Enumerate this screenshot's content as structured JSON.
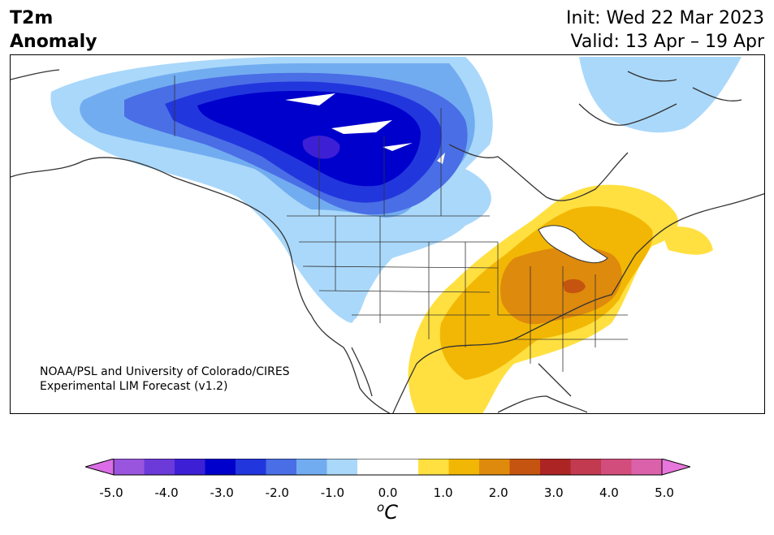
{
  "title": {
    "line1": "T2m",
    "line2": "Anomaly"
  },
  "header": {
    "init": "Init: Wed 22 Mar 2023",
    "valid": "Valid: 13 Apr – 19 Apr"
  },
  "credit": {
    "line1": "NOAA/PSL and University of Colorado/CIRES",
    "line2": "Experimental LIM Forecast (v1.2)"
  },
  "colorbar": {
    "ticks": [
      "-5.0",
      "-4.0",
      "-3.0",
      "-2.0",
      "-1.0",
      "0.0",
      "1.0",
      "2.0",
      "3.0",
      "4.0",
      "5.0"
    ],
    "unit_sup": "o",
    "unit": "C",
    "colors": [
      "#9955dd",
      "#6b3ad9",
      "#3d1fd6",
      "#0000cc",
      "#2236dd",
      "#4a6ee6",
      "#72acf0",
      "#aad8fa",
      "#ffffff",
      "#ffffff",
      "#ffe040",
      "#f2b705",
      "#de8a0c",
      "#c4540f",
      "#ad2424",
      "#c23a4f",
      "#d24d7c",
      "#db61aa"
    ],
    "under_color": "#dc6de8",
    "over_color": "#e777dc"
  },
  "map_colors": {
    "land_outline": "#333333",
    "cold1": "#aad8fa",
    "cold2": "#72acf0",
    "cold3": "#4a6ee6",
    "cold4": "#2236dd",
    "cold5": "#0000cc",
    "cold6": "#3d1fd6",
    "warm1": "#ffe040",
    "warm2": "#f2b705",
    "warm3": "#de8a0c",
    "warm4": "#c4540f"
  }
}
